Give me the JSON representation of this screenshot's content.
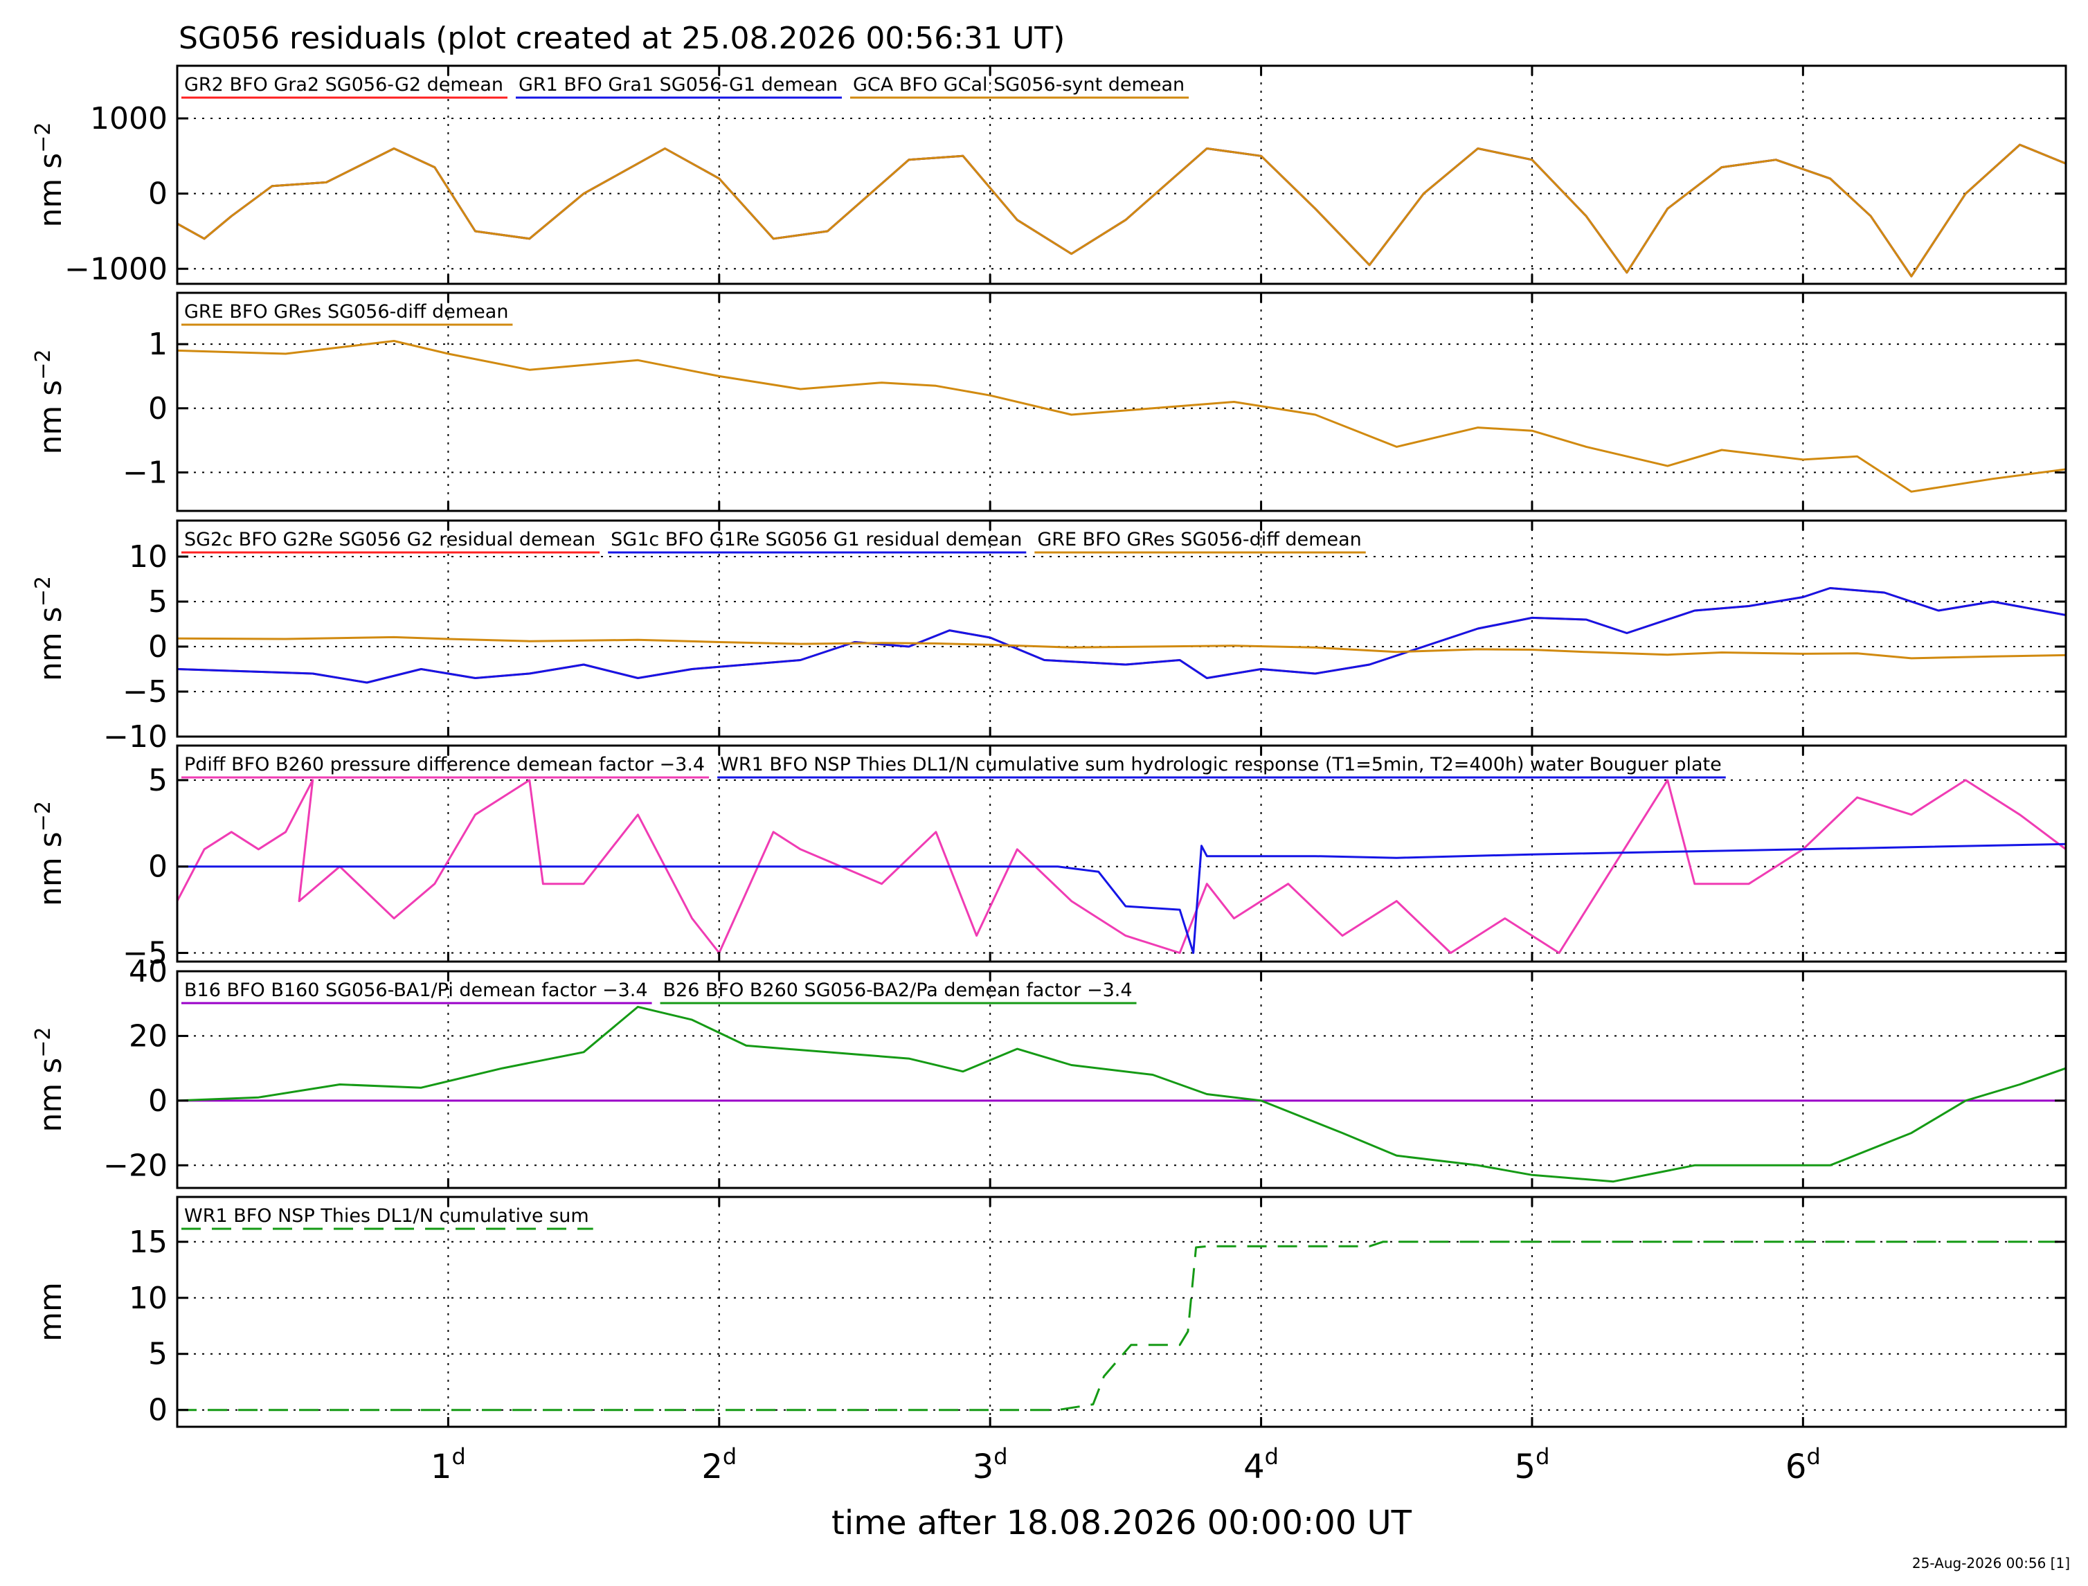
{
  "title": "SG056 residuals (plot created at 25.08.2026 00:56:31 UT)",
  "footer": "25-Aug-2026 00:56 [1]",
  "colors": {
    "red": "#ff2020",
    "blue": "#1515e6",
    "orange": "#d18a10",
    "magenta": "#f03cb4",
    "purple": "#9a00c8",
    "green": "#159a15",
    "frame": "#000000"
  },
  "chart_data": [
    {
      "type": "line",
      "ylabel": "nm s-2",
      "ylim": [
        -1200,
        1700
      ],
      "yticks": [
        -1000,
        0,
        1000
      ],
      "ytick_labels": [
        "−1000",
        "0",
        "1000"
      ],
      "grid": true,
      "legend_placement": "top-left",
      "series": [
        {
          "name": "GR2 BFO Gra2 SG056-G2 demean",
          "color": "red",
          "x": [
            0,
            0.1,
            0.2,
            0.35,
            0.55,
            0.8,
            0.95,
            1.1,
            1.3,
            1.5,
            1.8,
            2.0,
            2.2,
            2.4,
            2.7,
            2.9,
            3.1,
            3.3,
            3.5,
            3.8,
            4.0,
            4.2,
            4.4,
            4.6,
            4.8,
            5.0,
            5.2,
            5.35,
            5.5,
            5.7,
            5.9,
            6.1,
            6.25,
            6.4,
            6.6,
            6.8,
            6.97
          ],
          "y": [
            -400,
            -600,
            -300,
            100,
            150,
            600,
            350,
            -500,
            -600,
            0,
            600,
            200,
            -600,
            -500,
            450,
            500,
            -350,
            -800,
            -350,
            600,
            500,
            -200,
            -950,
            0,
            600,
            450,
            -300,
            -1050,
            -200,
            350,
            450,
            200,
            -300,
            -1100,
            0,
            650,
            400
          ]
        },
        {
          "name": "GR1 BFO Gra1 SG056-G1 demean",
          "color": "blue",
          "x": [
            0,
            0.1,
            0.2,
            0.35,
            0.55,
            0.8,
            0.95,
            1.1,
            1.3,
            1.5,
            1.8,
            2.0,
            2.2,
            2.4,
            2.7,
            2.9,
            3.1,
            3.3,
            3.5,
            3.8,
            4.0,
            4.2,
            4.4,
            4.6,
            4.8,
            5.0,
            5.2,
            5.35,
            5.5,
            5.7,
            5.9,
            6.1,
            6.25,
            6.4,
            6.6,
            6.8,
            6.97
          ],
          "y": [
            -400,
            -600,
            -300,
            100,
            150,
            600,
            350,
            -500,
            -600,
            0,
            600,
            200,
            -600,
            -500,
            450,
            500,
            -350,
            -800,
            -350,
            600,
            500,
            -200,
            -950,
            0,
            600,
            450,
            -300,
            -1050,
            -200,
            350,
            450,
            200,
            -300,
            -1100,
            0,
            650,
            400
          ]
        },
        {
          "name": "GCA BFO GCal SG056-synt demean",
          "color": "orange",
          "x": [
            0,
            0.1,
            0.2,
            0.35,
            0.55,
            0.8,
            0.95,
            1.1,
            1.3,
            1.5,
            1.8,
            2.0,
            2.2,
            2.4,
            2.7,
            2.9,
            3.1,
            3.3,
            3.5,
            3.8,
            4.0,
            4.2,
            4.4,
            4.6,
            4.8,
            5.0,
            5.2,
            5.35,
            5.5,
            5.7,
            5.9,
            6.1,
            6.25,
            6.4,
            6.6,
            6.8,
            6.97
          ],
          "y": [
            -400,
            -600,
            -300,
            100,
            150,
            600,
            350,
            -500,
            -600,
            0,
            600,
            200,
            -600,
            -500,
            450,
            500,
            -350,
            -800,
            -350,
            600,
            500,
            -200,
            -950,
            0,
            600,
            450,
            -300,
            -1050,
            -200,
            350,
            450,
            200,
            -300,
            -1100,
            0,
            650,
            400
          ]
        }
      ]
    },
    {
      "type": "line",
      "ylabel": "nm s-2",
      "ylim": [
        -1.6,
        1.8
      ],
      "yticks": [
        -1,
        0,
        1
      ],
      "ytick_labels": [
        "−1",
        "0",
        "1"
      ],
      "grid": true,
      "legend_placement": "top-left",
      "series": [
        {
          "name": "GRE BFO GRes SG056-diff demean",
          "color": "orange",
          "x": [
            0,
            0.4,
            0.8,
            1.0,
            1.3,
            1.7,
            2.0,
            2.3,
            2.6,
            2.8,
            3.0,
            3.3,
            3.6,
            3.9,
            4.2,
            4.5,
            4.8,
            5.0,
            5.2,
            5.5,
            5.7,
            6.0,
            6.2,
            6.4,
            6.7,
            6.97
          ],
          "y": [
            0.9,
            0.85,
            1.05,
            0.85,
            0.6,
            0.75,
            0.5,
            0.3,
            0.4,
            0.35,
            0.2,
            -0.1,
            0.0,
            0.1,
            -0.1,
            -0.6,
            -0.3,
            -0.35,
            -0.6,
            -0.9,
            -0.65,
            -0.8,
            -0.75,
            -1.3,
            -1.1,
            -0.95
          ]
        }
      ]
    },
    {
      "type": "line",
      "ylabel": "nm s-2",
      "ylim": [
        -10,
        14
      ],
      "yticks": [
        -10,
        -5,
        0,
        5,
        10
      ],
      "ytick_labels": [
        "−10",
        "−5",
        "0",
        "5",
        "10"
      ],
      "grid": true,
      "legend_placement": "top-left",
      "series": [
        {
          "name": "SG2c BFO G2Re SG056 G2 residual demean",
          "color": "red",
          "x": [
            0,
            0.3,
            0.5,
            0.7,
            0.9,
            1.1,
            1.3,
            1.5,
            1.7,
            1.9,
            2.1,
            2.3,
            2.5,
            2.7,
            2.85,
            3.0,
            3.2,
            3.5,
            3.7,
            3.8,
            4.0,
            4.2,
            4.4,
            4.6,
            4.8,
            5.0,
            5.2,
            5.35,
            5.6,
            5.8,
            6.0,
            6.1,
            6.3,
            6.5,
            6.7,
            6.97
          ],
          "y": [
            -2.5,
            -2.8,
            -3.0,
            -4.0,
            -2.5,
            -3.5,
            -3.0,
            -2.0,
            -3.5,
            -2.5,
            -2.0,
            -1.5,
            0.5,
            0.0,
            1.8,
            1.0,
            -1.5,
            -2.0,
            -1.5,
            -3.5,
            -2.5,
            -3.0,
            -2.0,
            0.0,
            2.0,
            3.2,
            3.0,
            1.5,
            4.0,
            4.5,
            5.5,
            6.5,
            6.0,
            4.0,
            5.0,
            3.5
          ]
        },
        {
          "name": "SG1c BFO G1Re SG056 G1 residual demean",
          "color": "blue",
          "x": [
            0,
            0.3,
            0.5,
            0.7,
            0.9,
            1.1,
            1.3,
            1.5,
            1.7,
            1.9,
            2.1,
            2.3,
            2.5,
            2.7,
            2.85,
            3.0,
            3.2,
            3.5,
            3.7,
            3.8,
            4.0,
            4.2,
            4.4,
            4.6,
            4.8,
            5.0,
            5.2,
            5.35,
            5.6,
            5.8,
            6.0,
            6.1,
            6.3,
            6.5,
            6.7,
            6.97
          ],
          "y": [
            -2.5,
            -2.8,
            -3.0,
            -4.0,
            -2.5,
            -3.5,
            -3.0,
            -2.0,
            -3.5,
            -2.5,
            -2.0,
            -1.5,
            0.5,
            0.0,
            1.8,
            1.0,
            -1.5,
            -2.0,
            -1.5,
            -3.5,
            -2.5,
            -3.0,
            -2.0,
            0.0,
            2.0,
            3.2,
            3.0,
            1.5,
            4.0,
            4.5,
            5.5,
            6.5,
            6.0,
            4.0,
            5.0,
            3.5
          ]
        },
        {
          "name": "GRE BFO GRes SG056-diff demean",
          "color": "orange",
          "x": [
            0,
            0.4,
            0.8,
            1.0,
            1.3,
            1.7,
            2.0,
            2.3,
            2.6,
            2.8,
            3.0,
            3.3,
            3.6,
            3.9,
            4.2,
            4.5,
            4.8,
            5.0,
            5.2,
            5.5,
            5.7,
            6.0,
            6.2,
            6.4,
            6.7,
            6.97
          ],
          "y": [
            0.9,
            0.85,
            1.05,
            0.85,
            0.6,
            0.75,
            0.5,
            0.3,
            0.4,
            0.35,
            0.2,
            -0.1,
            0.0,
            0.1,
            -0.1,
            -0.6,
            -0.3,
            -0.35,
            -0.6,
            -0.9,
            -0.65,
            -0.8,
            -0.75,
            -1.3,
            -1.1,
            -0.95
          ]
        }
      ]
    },
    {
      "type": "line",
      "ylabel": "nm s-2",
      "ylim": [
        -5.5,
        7
      ],
      "yticks": [
        -5,
        0,
        5
      ],
      "ytick_labels": [
        "−5",
        "0",
        "5"
      ],
      "grid": true,
      "legend_placement": "top-left",
      "series": [
        {
          "name": "Pdiff BFO B260 pressure difference demean factor −3.4",
          "color": "magenta",
          "x": [
            0,
            0.1,
            0.2,
            0.3,
            0.4,
            0.5,
            0.45,
            0.6,
            0.8,
            0.95,
            1.1,
            1.3,
            1.35,
            1.5,
            1.7,
            1.9,
            2.0,
            2.2,
            2.3,
            2.6,
            2.8,
            2.95,
            3.1,
            3.3,
            3.5,
            3.7,
            3.8,
            3.9,
            4.1,
            4.3,
            4.5,
            4.7,
            4.9,
            5.1,
            5.3,
            5.5,
            5.6,
            5.8,
            6.0,
            6.2,
            6.4,
            6.6,
            6.8,
            6.97
          ],
          "y": [
            -2,
            1,
            2,
            1,
            2,
            5,
            -2,
            0,
            -3,
            -1,
            3,
            5,
            -1,
            -1,
            3,
            -3,
            -5,
            2,
            1,
            -1,
            2,
            -4,
            1,
            -2,
            -4,
            -5,
            -1,
            -3,
            -1,
            -4,
            -2,
            -5,
            -3,
            -5,
            0,
            5,
            -1,
            -1,
            1,
            4,
            3,
            5,
            3,
            1
          ]
        },
        {
          "name": "WR1 BFO NSP Thies DL1/N cumulative sum hydrologic response (T1=5min, T2=400h) water Bouguer plate",
          "color": "blue",
          "x": [
            0,
            1.0,
            2.0,
            3.0,
            3.25,
            3.4,
            3.5,
            3.7,
            3.75,
            3.78,
            3.8,
            4.2,
            4.5,
            5.0,
            6.0,
            6.97
          ],
          "y": [
            0,
            0,
            0,
            0,
            0,
            -0.3,
            -2.3,
            -2.5,
            -5.0,
            1.2,
            0.6,
            0.6,
            0.5,
            0.7,
            1.0,
            1.3
          ]
        }
      ]
    },
    {
      "type": "line",
      "ylabel": "nm s-2",
      "ylim": [
        -27,
        40
      ],
      "yticks": [
        -20,
        0,
        20,
        40
      ],
      "ytick_labels": [
        "−20",
        "0",
        "20",
        "40"
      ],
      "grid": true,
      "legend_placement": "top-left",
      "series": [
        {
          "name": "B16 BFO B160 SG056-BA1/Pi demean factor −3.4",
          "color": "purple",
          "x": [
            0,
            6.97
          ],
          "y": [
            0,
            0
          ]
        },
        {
          "name": "B26 BFO B260 SG056-BA2/Pa demean factor −3.4",
          "color": "green",
          "x": [
            0,
            0.3,
            0.6,
            0.9,
            1.2,
            1.5,
            1.7,
            1.9,
            2.1,
            2.4,
            2.7,
            2.9,
            3.1,
            3.3,
            3.6,
            3.8,
            4.0,
            4.3,
            4.5,
            4.8,
            5.0,
            5.3,
            5.6,
            5.8,
            6.1,
            6.4,
            6.6,
            6.8,
            6.97
          ],
          "y": [
            0,
            1,
            5,
            4,
            10,
            15,
            29,
            25,
            17,
            15,
            13,
            9,
            16,
            11,
            8,
            2,
            0,
            -10,
            -17,
            -20,
            -23,
            -25,
            -20,
            -20,
            -20,
            -10,
            0,
            5,
            10
          ]
        }
      ]
    },
    {
      "type": "line",
      "ylabel": "mm",
      "ylim": [
        -1.5,
        19
      ],
      "yticks": [
        0,
        5,
        10,
        15
      ],
      "ytick_labels": [
        "0",
        "5",
        "10",
        "15"
      ],
      "grid": true,
      "legend_placement": "top-left",
      "series": [
        {
          "name": "WR1 BFO NSP Thies DL1/N cumulative sum",
          "color": "green",
          "dashed": true,
          "x": [
            0,
            3.25,
            3.38,
            3.42,
            3.52,
            3.7,
            3.73,
            3.76,
            3.8,
            4.4,
            4.45,
            6.97
          ],
          "y": [
            0,
            0,
            0.5,
            3,
            5.8,
            5.8,
            7,
            14.5,
            14.6,
            14.6,
            15.0,
            15.0
          ]
        }
      ]
    }
  ],
  "x_axis": {
    "label": "time after 18.08.2026 00:00:00 UT",
    "xlim": [
      0,
      6.97
    ],
    "ticks": [
      1,
      2,
      3,
      4,
      5,
      6
    ],
    "tick_labels": [
      "1",
      "2",
      "3",
      "4",
      "5",
      "6"
    ],
    "tick_suffix": "d"
  }
}
